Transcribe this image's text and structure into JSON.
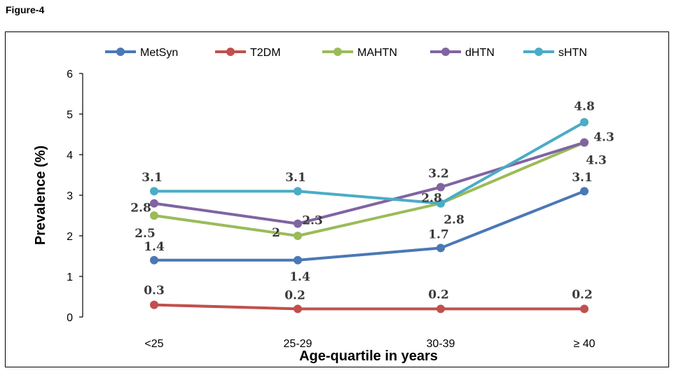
{
  "figure_label": "Figure-4",
  "chart_data": {
    "type": "line",
    "categories": [
      "<25",
      "25-29",
      "30-39",
      "≥ 40"
    ],
    "xlabel": "Age-quartile in years",
    "ylabel": "Prevalence (%)",
    "ylim": [
      0,
      6
    ],
    "yticks": [
      0,
      1,
      2,
      3,
      4,
      5,
      6
    ],
    "grid": false,
    "legend_position": "top",
    "series": [
      {
        "name": "MetSyn",
        "color": "#4a78b5",
        "values": [
          1.4,
          1.4,
          1.7,
          3.1
        ],
        "labels": [
          "1.4",
          "1.4",
          "1.7",
          "3.1"
        ]
      },
      {
        "name": "T2DM",
        "color": "#c0504d",
        "values": [
          0.3,
          0.2,
          0.2,
          0.2
        ],
        "labels": [
          "0.3",
          "0.2",
          "0.2",
          "0.2"
        ]
      },
      {
        "name": "MAHTN",
        "color": "#9bbb59",
        "values": [
          2.5,
          2.0,
          2.8,
          4.3
        ],
        "labels": [
          "2.5",
          "2",
          "2.8",
          "4.3"
        ]
      },
      {
        "name": "dHTN",
        "color": "#8064a2",
        "values": [
          2.8,
          2.3,
          3.2,
          4.3
        ],
        "labels": [
          "2.8",
          "2.3",
          "3.2",
          "4.3"
        ]
      },
      {
        "name": "sHTN",
        "color": "#4bacc6",
        "values": [
          3.1,
          3.1,
          2.8,
          4.8
        ],
        "labels": [
          "3.1",
          "3.1",
          "2.8",
          "4.8"
        ]
      }
    ]
  }
}
